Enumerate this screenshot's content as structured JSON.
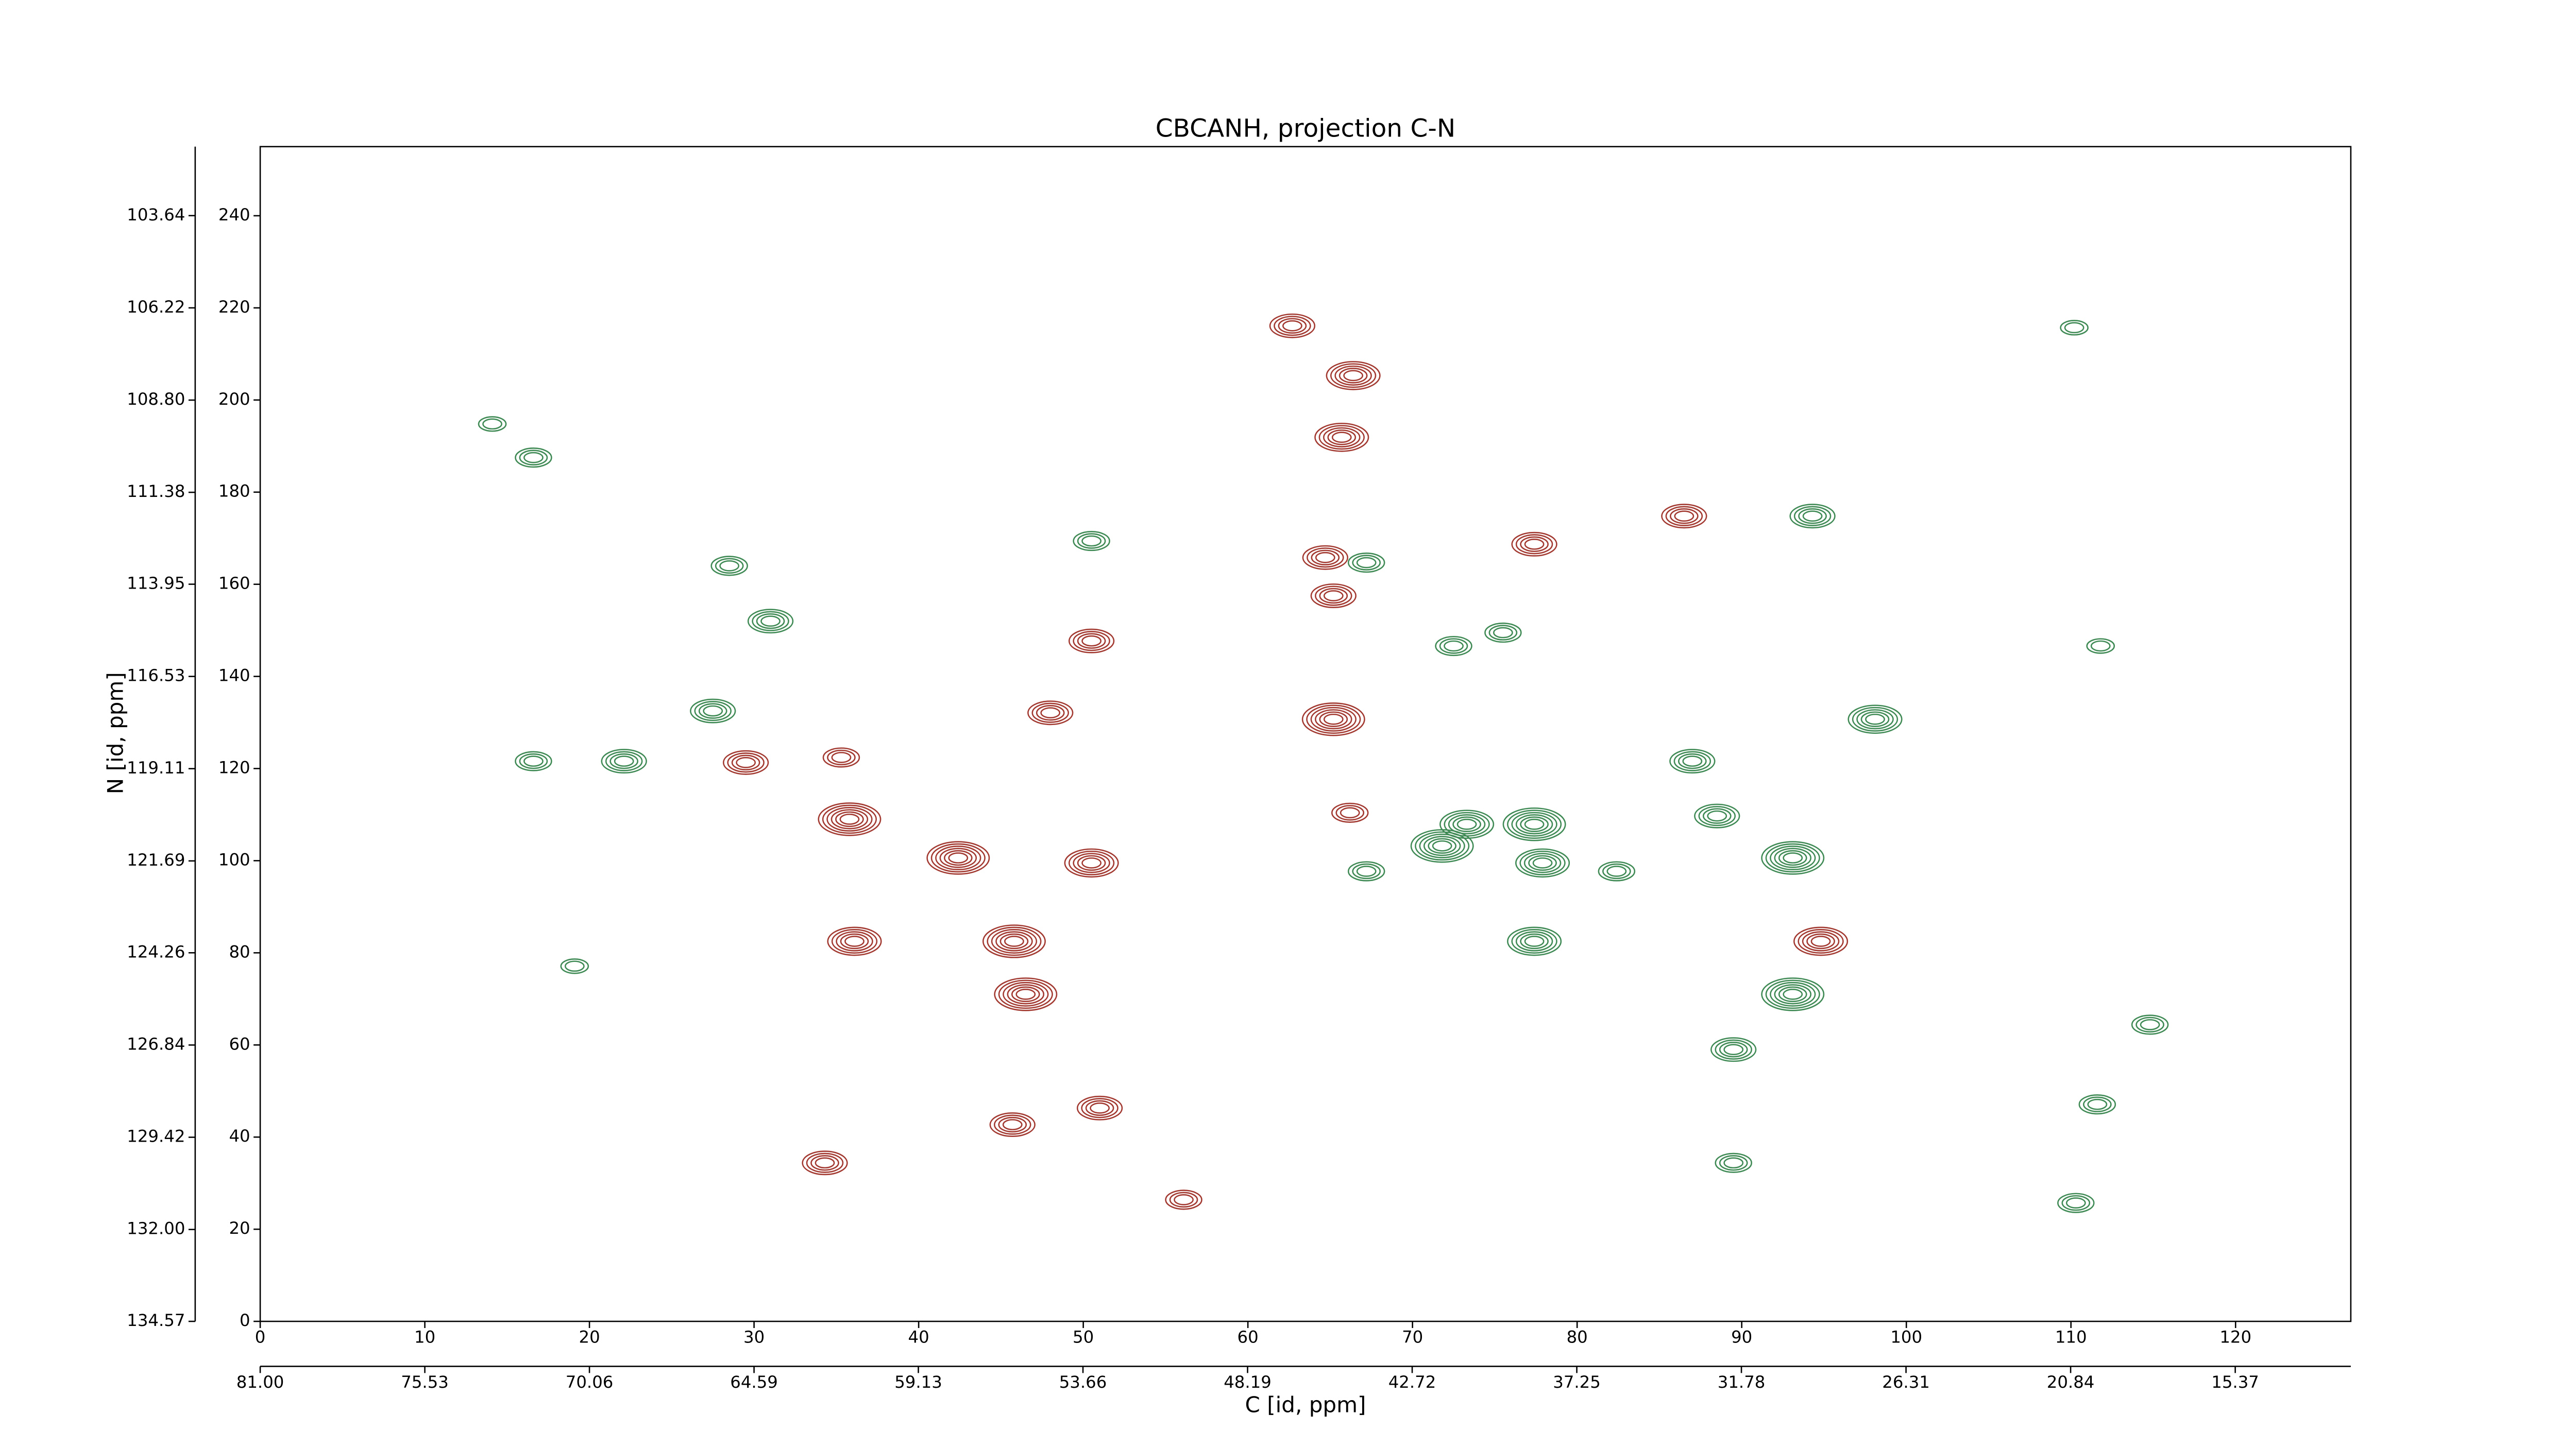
{
  "chart_data": {
    "type": "contour",
    "title": "CBCANH, projection C-N",
    "xlabel": "C [id, ppm]",
    "ylabel": "N [id, ppm]",
    "xlim": [
      0,
      127
    ],
    "xticks": [
      0,
      10,
      20,
      30,
      40,
      50,
      60,
      70,
      80,
      90,
      100,
      110,
      120
    ],
    "ylim": [
      0,
      255
    ],
    "yticks": [
      0,
      20,
      40,
      60,
      80,
      100,
      120,
      140,
      160,
      180,
      200,
      220,
      240
    ],
    "x2lim": [
      81.0,
      11.53
    ],
    "x2ticks": [
      {
        "value": 81,
        "label": "81.00"
      },
      75.53,
      70.06,
      64.59,
      59.13,
      53.66,
      48.19,
      42.72,
      37.25,
      31.78,
      26.31,
      20.84,
      15.37
    ],
    "y2lim": [
      134.57,
      101.71
    ],
    "y2ticks": [
      134.57,
      {
        "value": 132,
        "label": "132.00"
      },
      129.42,
      126.84,
      124.26,
      121.69,
      119.11,
      116.53,
      113.95,
      111.38,
      {
        "value": 108.8,
        "label": "108.80"
      },
      106.22,
      103.64
    ],
    "series": [
      {
        "color": "#a33a32",
        "x": [
          35.8,
          42.4,
          50.5,
          36.1,
          45.8,
          46.5,
          65.2,
          65.7,
          66.4,
          62.7,
          86.5,
          94.8,
          29.5,
          34.3,
          45.7,
          50.5,
          64.7,
          65.2,
          77.4,
          51.0,
          56.1,
          35.3,
          48.0,
          66.2
        ],
        "y": [
          109.0,
          100.6,
          99.5,
          82.5,
          82.5,
          71.0,
          130.7,
          191.9,
          205.3,
          216.1,
          174.8,
          82.5,
          121.3,
          34.4,
          42.7,
          147.7,
          165.8,
          157.5,
          168.7,
          46.3,
          26.4,
          122.4,
          132.1,
          110.4
        ],
        "levels": [
          6,
          6,
          5,
          5,
          6,
          6,
          6,
          5,
          5,
          4,
          4,
          5,
          4,
          4,
          4,
          4,
          4,
          4,
          4,
          4,
          3,
          3,
          4,
          3
        ]
      },
      {
        "color": "#3f8a55",
        "x": [
          71.8,
          73.3,
          77.4,
          77.9,
          93.1,
          93.1,
          98.1,
          77.4,
          88.5,
          87.0,
          94.3,
          31.0,
          27.5,
          22.1,
          16.6,
          28.5,
          67.2,
          72.5,
          75.5,
          50.5,
          89.5,
          110.3,
          111.6,
          114.8,
          110.2,
          89.5,
          19.1,
          14.1,
          16.6,
          67.2,
          82.4,
          111.8
        ],
        "y": [
          103.2,
          107.9,
          107.9,
          99.5,
          100.6,
          71.0,
          130.7,
          82.5,
          109.7,
          121.6,
          174.8,
          152.0,
          132.5,
          121.6,
          121.6,
          164.0,
          164.7,
          146.6,
          149.5,
          169.4,
          59.0,
          25.7,
          47.1,
          64.4,
          215.7,
          34.4,
          77.1,
          194.8,
          187.5,
          97.7,
          97.7,
          146.6
        ],
        "levels": [
          6,
          5,
          6,
          5,
          6,
          6,
          5,
          5,
          4,
          4,
          4,
          4,
          4,
          4,
          3,
          3,
          3,
          3,
          3,
          3,
          4,
          3,
          3,
          3,
          2,
          3,
          2,
          2,
          3,
          3,
          3,
          2
        ]
      }
    ]
  }
}
